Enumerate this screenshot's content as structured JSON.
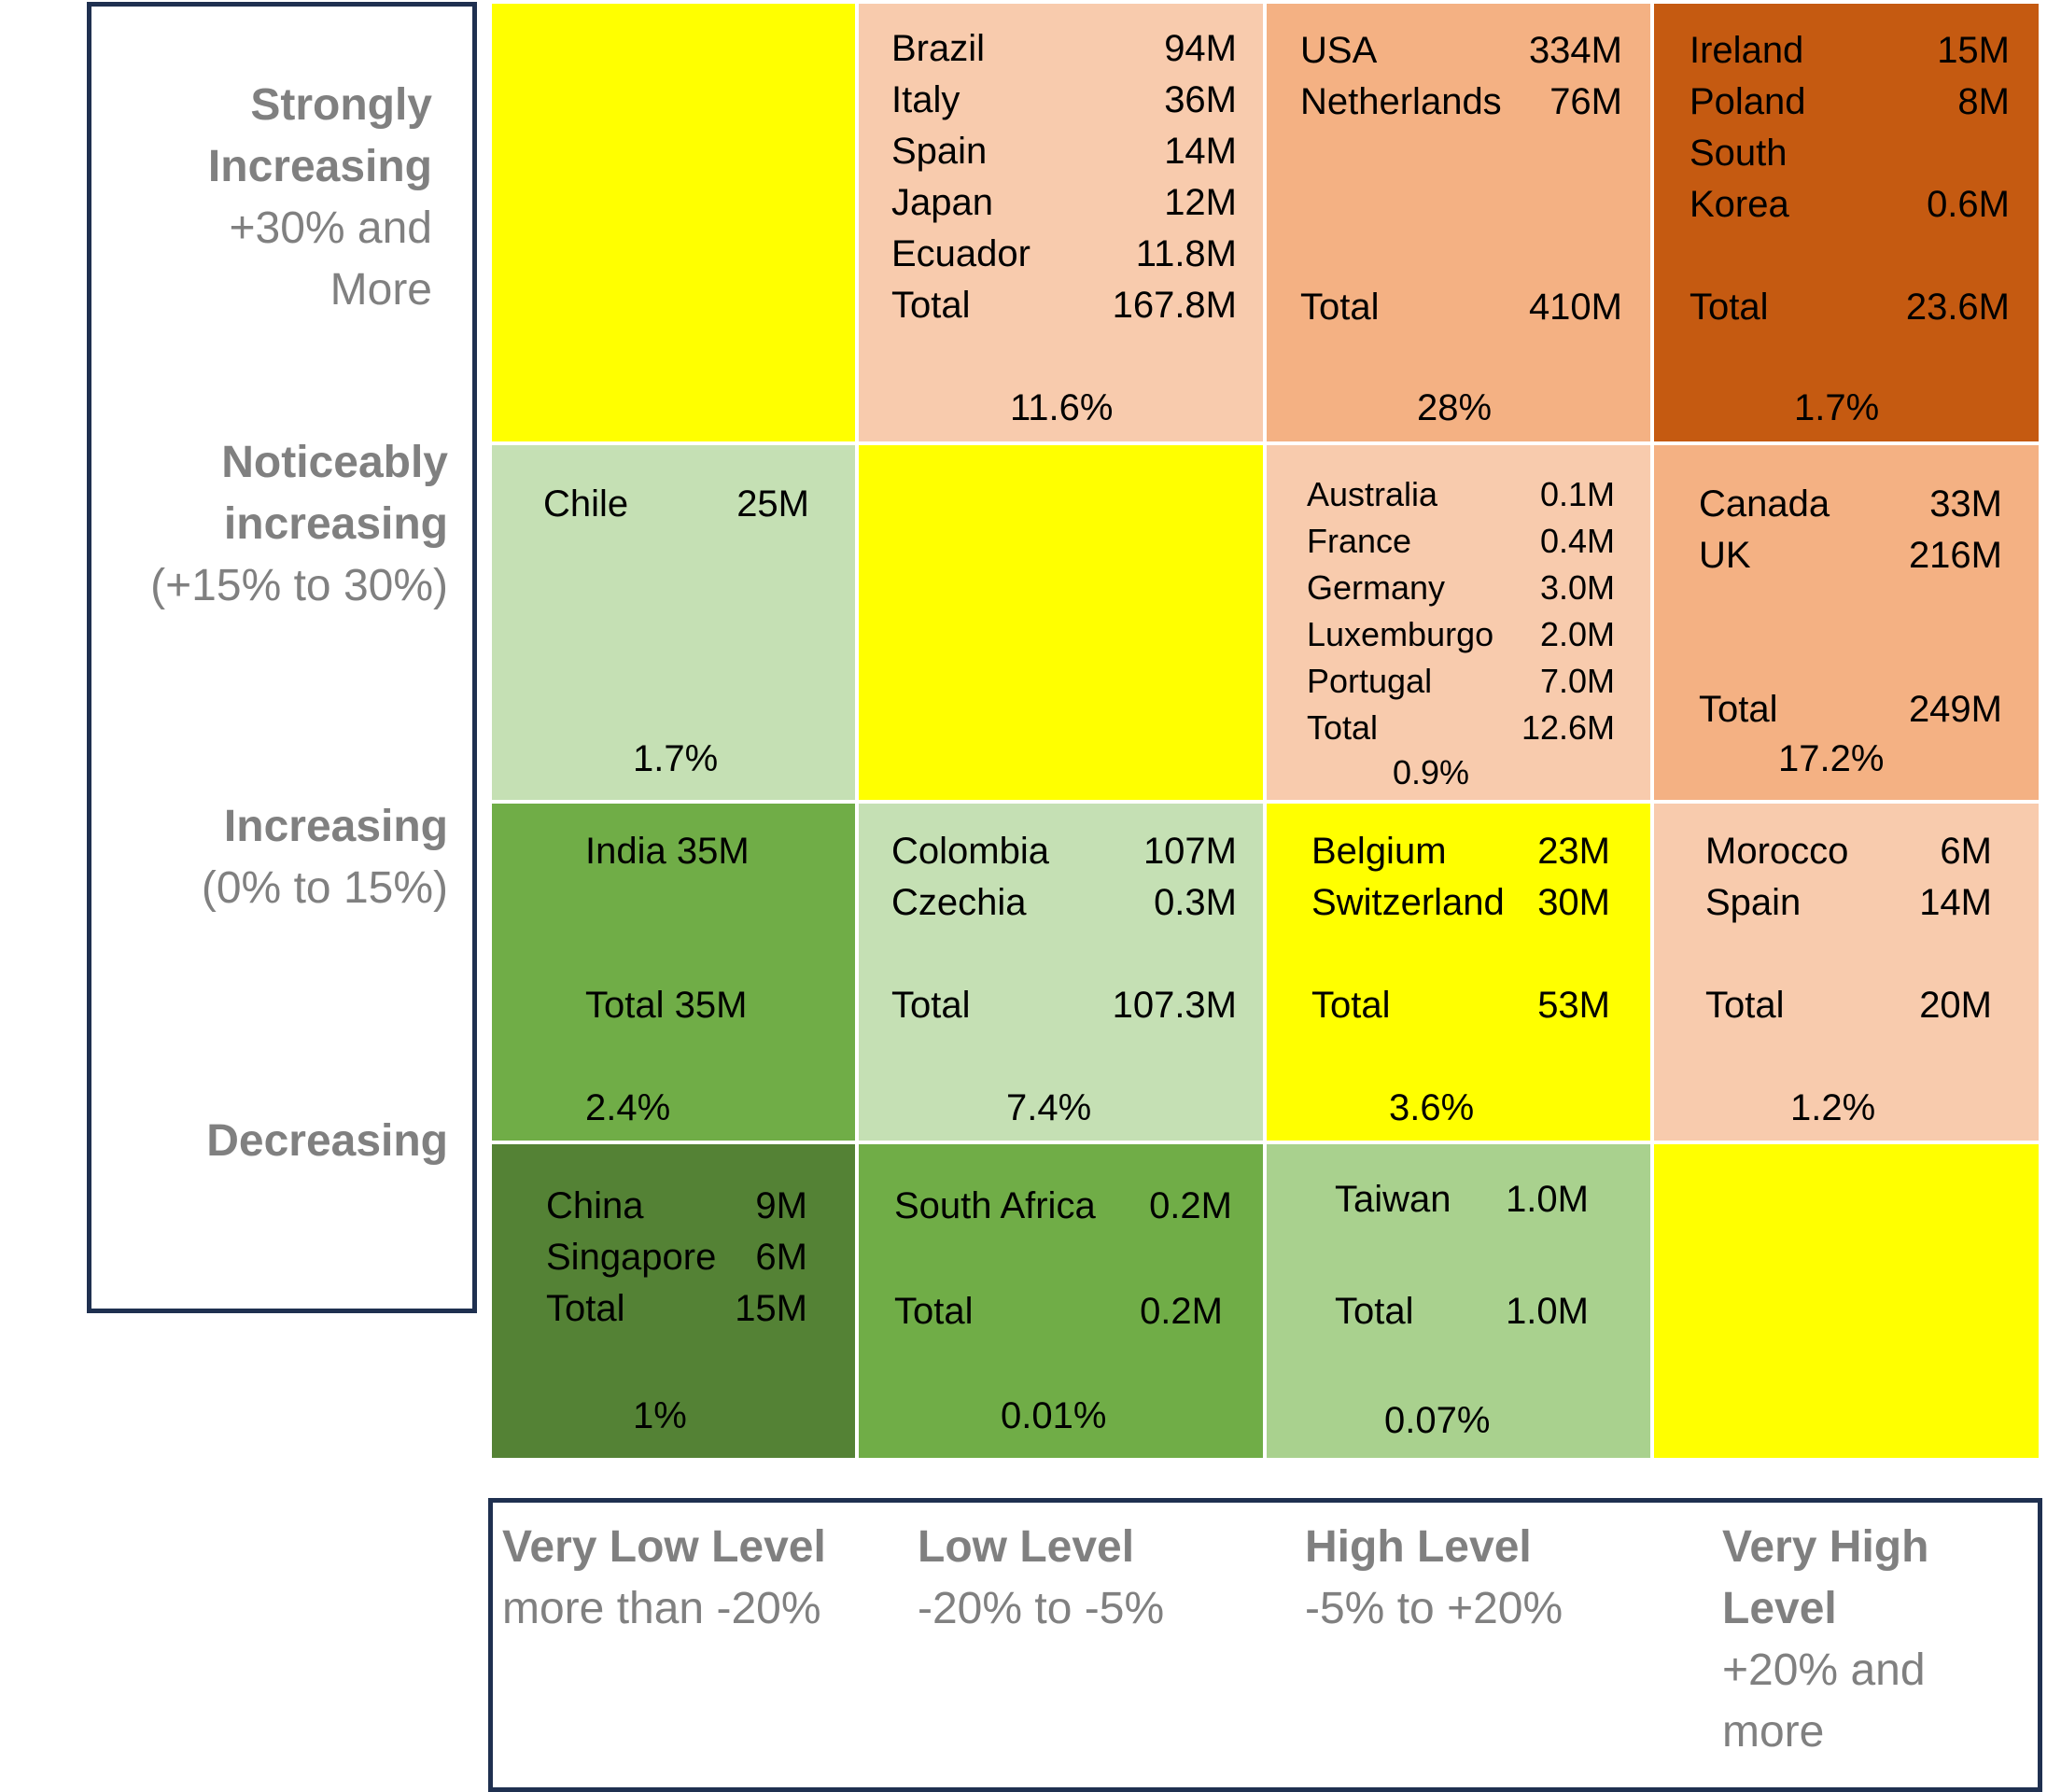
{
  "rows": [
    {
      "id": "strongly-increasing",
      "title": "Strongly Increasing",
      "subtitle": "+30% and More"
    },
    {
      "id": "noticeably-increasing",
      "title": "Noticeably increasing",
      "subtitle": "(+15% to 30%)"
    },
    {
      "id": "increasing",
      "title": "Increasing",
      "subtitle": "(0% to 15%)"
    },
    {
      "id": "decreasing",
      "title": "Decreasing",
      "subtitle": ""
    }
  ],
  "columns": [
    {
      "id": "very-low",
      "title": "Very Low Level",
      "subtitle": "more than -20%"
    },
    {
      "id": "low",
      "title": "Low Level",
      "subtitle": "-20% to  -5%"
    },
    {
      "id": "high",
      "title": "High Level",
      "subtitle": "-5% to +20%"
    },
    {
      "id": "very-high",
      "title": "Very High Level",
      "subtitle": "+20% and more"
    }
  ],
  "colors": {
    "yellow": "#ffff00",
    "peach_light": "#f8cbad",
    "peach": "#f4b183",
    "rust": "#c55a11",
    "green_light": "#c5e0b4",
    "green": "#70ad47",
    "green_mid": "#a9d18e",
    "green_dark": "#548235",
    "border": "#1f3050",
    "legend_text": "#808080"
  },
  "cells": {
    "r0c0": {
      "color": "yellow",
      "entries": [],
      "total": null,
      "pct": null
    },
    "r0c1": {
      "color": "peach_light",
      "entries": [
        [
          "Brazil",
          "94M"
        ],
        [
          "Italy",
          "36M"
        ],
        [
          "Spain",
          "14M"
        ],
        [
          "Japan",
          "12M"
        ],
        [
          "Ecuador",
          "11.8M"
        ]
      ],
      "total": [
        "Total",
        "167.8M"
      ],
      "pct": "11.6%"
    },
    "r0c2": {
      "color": "peach",
      "entries": [
        [
          "USA",
          "334M"
        ],
        [
          "Netherlands",
          "76M"
        ]
      ],
      "total": [
        "Total",
        "410M"
      ],
      "pct": "28%"
    },
    "r0c3": {
      "color": "rust",
      "entries": [
        [
          "Ireland",
          "15M"
        ],
        [
          "Poland",
          "8M"
        ],
        [
          "South",
          ""
        ],
        [
          "Korea",
          "0.6M"
        ]
      ],
      "total": [
        "Total",
        "23.6M"
      ],
      "pct": "1.7%"
    },
    "r1c0": {
      "color": "green_light",
      "entries": [
        [
          "Chile",
          "25M"
        ]
      ],
      "total": null,
      "pct": "1.7%"
    },
    "r1c1": {
      "color": "yellow",
      "entries": [],
      "total": null,
      "pct": null
    },
    "r1c2": {
      "color": "peach_light",
      "entries": [
        [
          "Australia",
          "0.1M"
        ],
        [
          "France",
          "0.4M"
        ],
        [
          "Germany",
          "3.0M"
        ],
        [
          "Luxemburgo",
          "2.0M"
        ],
        [
          "Portugal",
          "7.0M"
        ],
        [
          "Total",
          "12.6M"
        ]
      ],
      "total": null,
      "pct": "0.9%"
    },
    "r1c3": {
      "color": "peach",
      "entries": [
        [
          "Canada",
          "33M"
        ],
        [
          "UK",
          "216M"
        ]
      ],
      "total": [
        "Total",
        "249M"
      ],
      "pct": "17.2%"
    },
    "r2c0": {
      "color": "green",
      "entries": [
        [
          "India 35M",
          ""
        ]
      ],
      "total": [
        "Total 35M",
        ""
      ],
      "pct": "2.4%"
    },
    "r2c1": {
      "color": "green_light",
      "entries": [
        [
          "Colombia",
          "107M"
        ],
        [
          "Czechia",
          "0.3M"
        ]
      ],
      "total": [
        "Total",
        "107.3M"
      ],
      "pct": "7.4%"
    },
    "r2c2": {
      "color": "yellow",
      "entries": [
        [
          "Belgium",
          "23M"
        ],
        [
          "Switzerland",
          "30M"
        ]
      ],
      "total": [
        "Total",
        "53M"
      ],
      "pct": "3.6%"
    },
    "r2c3": {
      "color": "peach_light",
      "entries": [
        [
          "Morocco",
          "6M"
        ],
        [
          "Spain",
          "14M"
        ]
      ],
      "total": [
        "Total",
        "20M"
      ],
      "pct": "1.2%"
    },
    "r3c0": {
      "color": "green_dark",
      "entries": [
        [
          "China",
          "9M"
        ],
        [
          "Singapore",
          "6M"
        ],
        [
          "Total",
          "15M"
        ]
      ],
      "total": null,
      "pct": "1%"
    },
    "r3c1": {
      "color": "green",
      "entries": [
        [
          "South Africa",
          "0.2M"
        ]
      ],
      "total": [
        "Total",
        "0.2M"
      ],
      "pct": "0.01%"
    },
    "r3c2": {
      "color": "green_mid",
      "entries": [
        [
          "Taiwan",
          "1.0M"
        ]
      ],
      "total": [
        "Total",
        "1.0M"
      ],
      "pct": "0.07%"
    },
    "r3c3": {
      "color": "yellow",
      "entries": [],
      "total": null,
      "pct": null
    }
  }
}
